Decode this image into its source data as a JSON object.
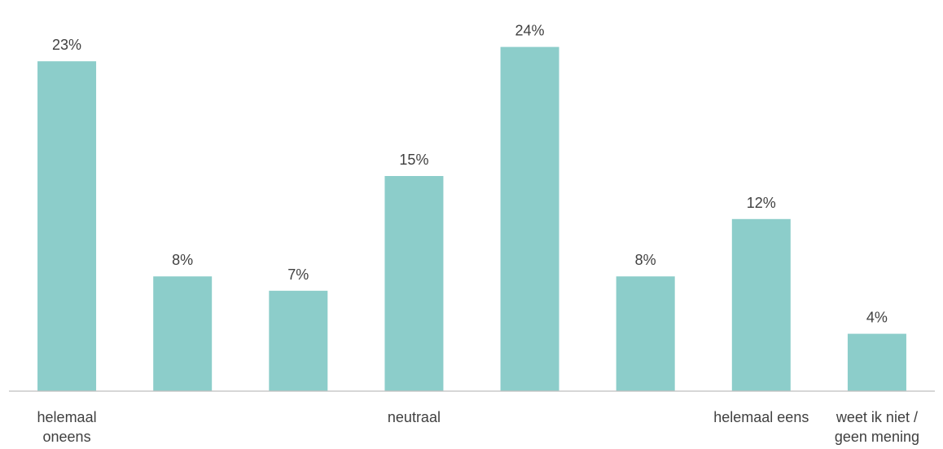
{
  "chart_data": {
    "type": "bar",
    "categories": [
      [
        "helemaal",
        "oneens"
      ],
      [],
      [],
      [
        "neutraal"
      ],
      [],
      [],
      [
        "helemaal eens"
      ],
      [
        "weet ik niet /",
        "geen mening"
      ]
    ],
    "values": [
      23,
      8,
      7,
      15,
      24,
      8,
      12,
      4
    ],
    "value_labels": [
      "23%",
      "8%",
      "7%",
      "15%",
      "24%",
      "8%",
      "12%",
      "4%"
    ],
    "title": "",
    "xlabel": "",
    "ylabel": "",
    "ylim": [
      0,
      25
    ],
    "grid": false,
    "legend": "none",
    "bar_color": "#8ccdca",
    "text_color": "#404040",
    "axis_color": "#bfbfbf"
  }
}
